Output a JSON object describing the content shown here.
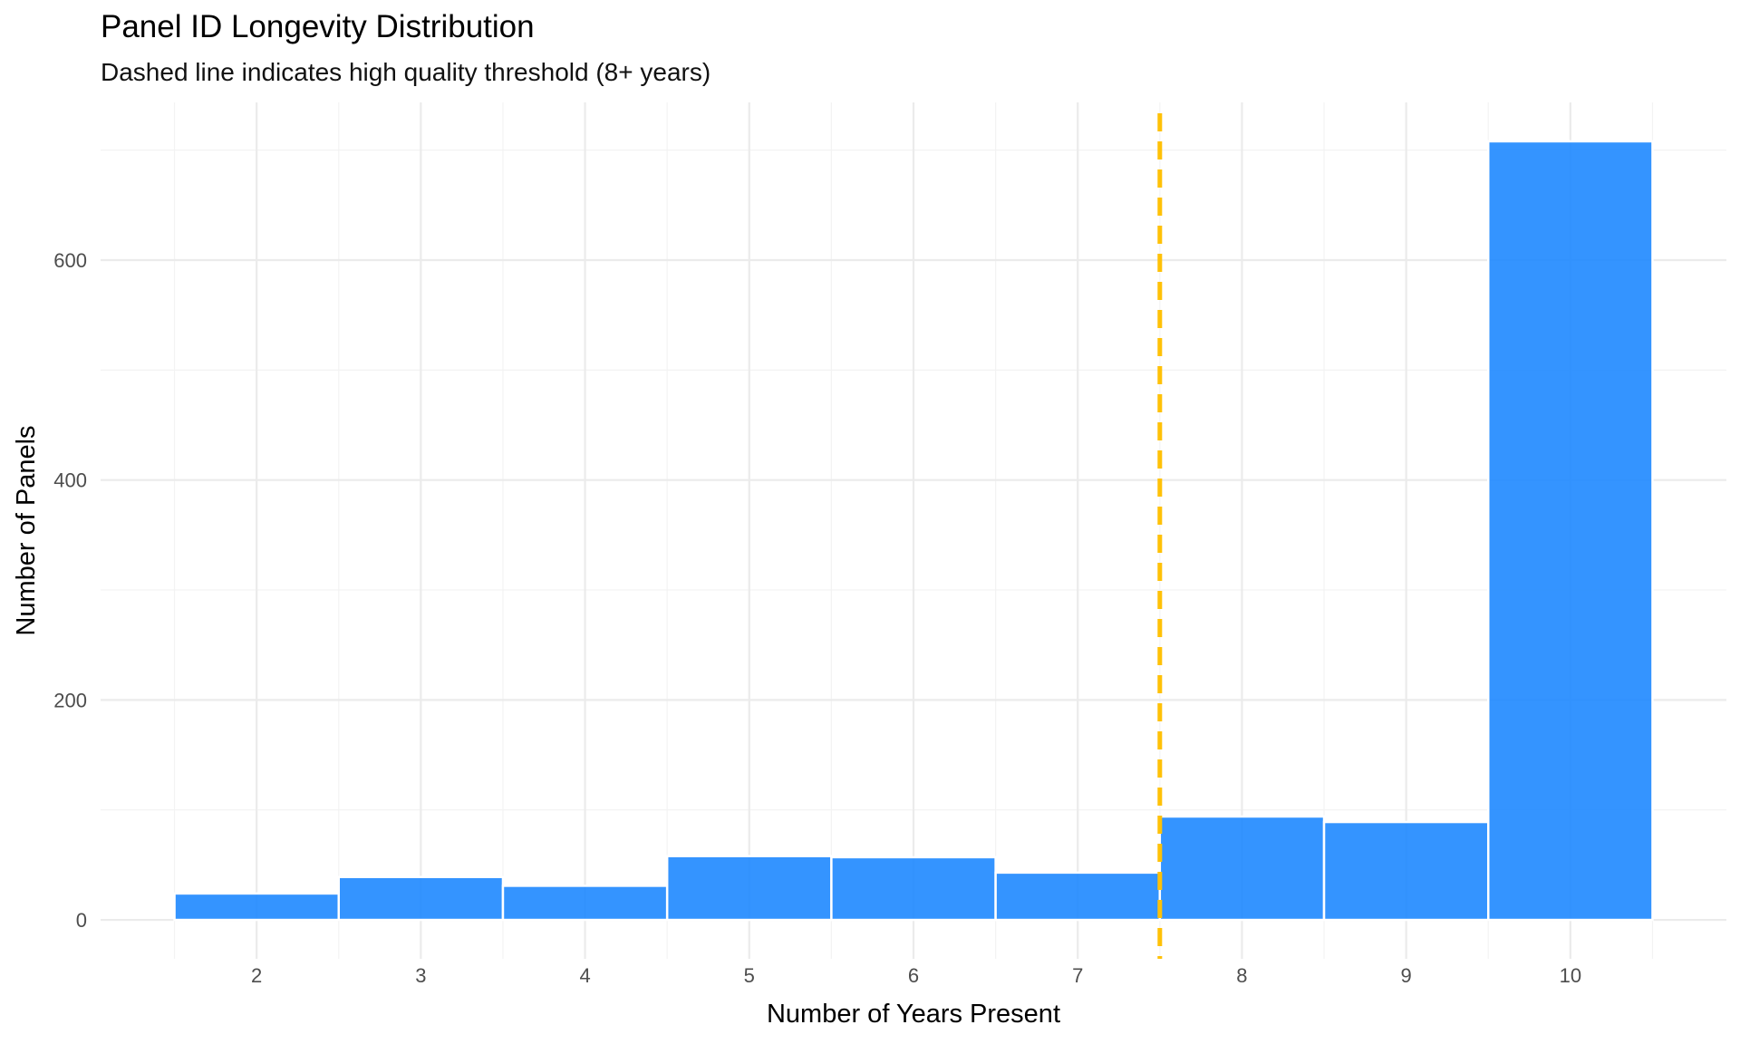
{
  "chart_data": {
    "type": "bar",
    "title": "Panel ID Longevity Distribution",
    "subtitle": "Dashed line indicates high quality threshold (8+ years)",
    "xlabel": "Number of Years Present",
    "ylabel": "Number of Panels",
    "categories": [
      "2",
      "3",
      "4",
      "5",
      "6",
      "7",
      "8",
      "9",
      "10"
    ],
    "x": [
      2,
      3,
      4,
      5,
      6,
      7,
      8,
      9,
      10
    ],
    "values": [
      24,
      39,
      31,
      58,
      57,
      43,
      94,
      89,
      708
    ],
    "xlim": [
      1.05,
      10.95
    ],
    "ylim": [
      -35.4,
      743.4
    ],
    "x_ticks": [
      2,
      3,
      4,
      5,
      6,
      7,
      8,
      9,
      10
    ],
    "y_ticks": [
      0,
      200,
      400,
      600
    ],
    "threshold_x": 7.5,
    "grid": true,
    "colors": {
      "bar_fill": "#1E88FF",
      "bar_outline": "#ffffff",
      "threshold_line": "#FFC107",
      "grid_major": "#EBEBEB",
      "grid_minor": "#F3F3F3"
    }
  }
}
